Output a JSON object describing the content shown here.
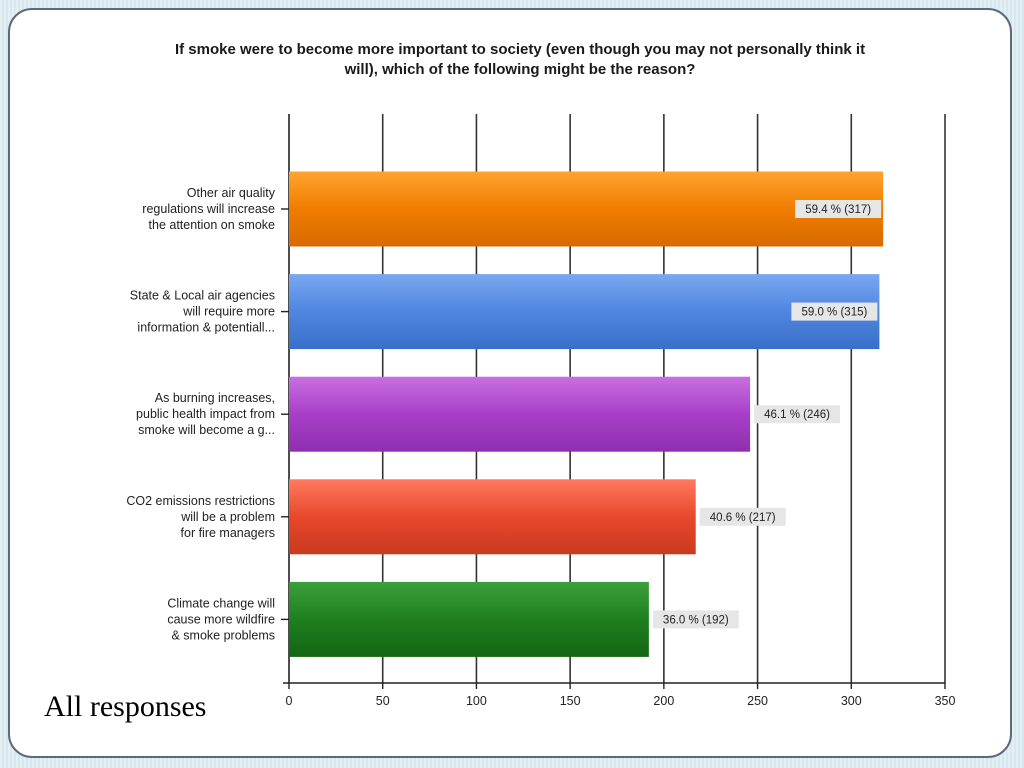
{
  "slide": {
    "caption": "All responses"
  },
  "chart_data": {
    "type": "bar",
    "orientation": "horizontal",
    "title": "If smoke were to become more important to society (even though you may not personally think it will), which of the following might be the reason?",
    "title_lines": [
      "If smoke were to become more important to society (even though you may not personally think it",
      "will), which of the following might be the reason?"
    ],
    "xlim": [
      0,
      350
    ],
    "x_ticks": [
      0,
      50,
      100,
      150,
      200,
      250,
      300,
      350
    ],
    "grid": true,
    "categories": [
      [
        "Other air quality",
        "regulations will increase",
        "the attention on smoke"
      ],
      [
        "State & Local air agencies",
        "will require more",
        "information & potentiall..."
      ],
      [
        "As burning increases,",
        "public health impact from",
        "smoke will become a g..."
      ],
      [
        "CO2 emissions restrictions",
        "will be a problem",
        "for fire managers"
      ],
      [
        "Climate change will",
        "cause more wildfire",
        "& smoke problems"
      ]
    ],
    "values": [
      317,
      315,
      246,
      217,
      192
    ],
    "data_labels": [
      "59.4 % (317)",
      "59.0 % (315)",
      "46.1 % (246)",
      "40.6 % (217)",
      "36.0 % (192)"
    ],
    "colors": [
      [
        "#ffa430",
        "#f07d00",
        "#d86a00"
      ],
      [
        "#7aa8f0",
        "#4f86e0",
        "#3a6fc8"
      ],
      [
        "#c96fe0",
        "#a83fc8",
        "#8f2fae"
      ],
      [
        "#ff7a60",
        "#e8482c",
        "#c83a20"
      ],
      [
        "#3aa03a",
        "#1f7f1f",
        "#136613"
      ]
    ]
  }
}
